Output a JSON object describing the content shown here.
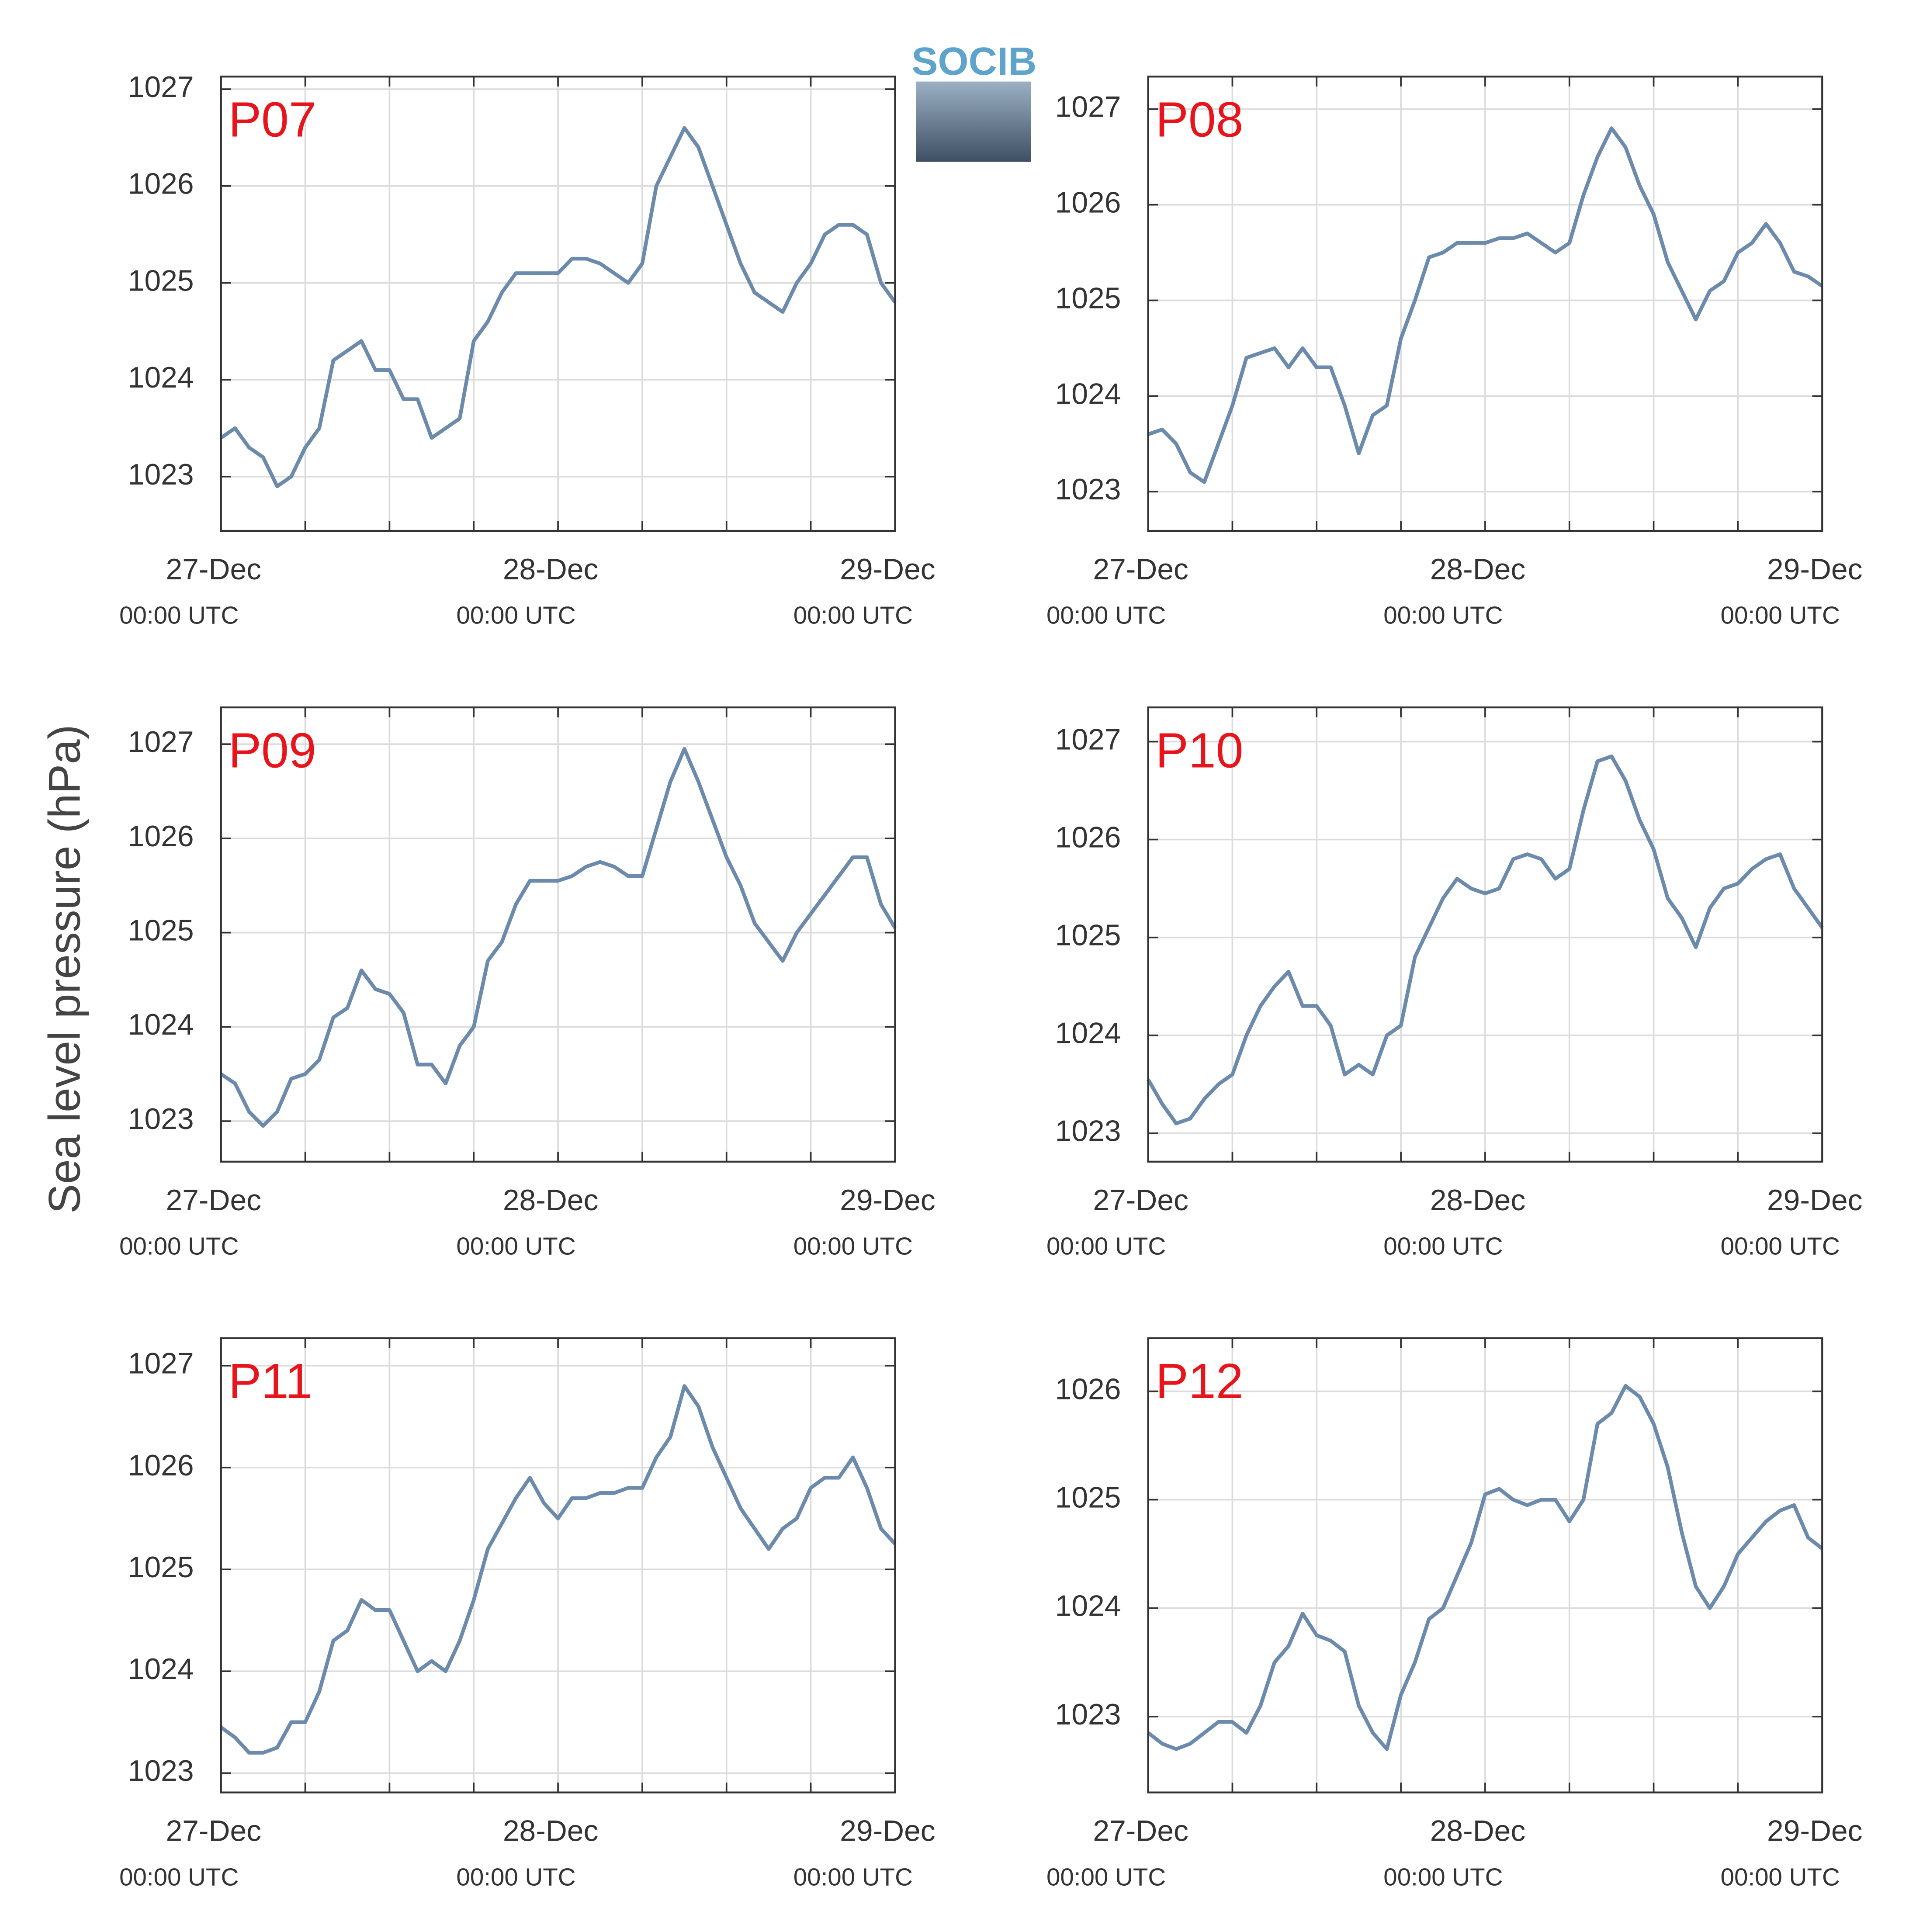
{
  "y_axis_label": "Sea level pressure (hPa)",
  "logo": "SOCIB",
  "chart_data": [
    {
      "type": "line",
      "title": "P07",
      "color": "#6c8aab",
      "title_color": "#e8141c",
      "grid": true,
      "xlim": [
        0,
        48
      ],
      "ylim": [
        1022.44,
        1027.13
      ],
      "yticks": [
        1023,
        1024,
        1025,
        1026,
        1027
      ],
      "xticks": [
        {
          "value": 0,
          "label": "27-Dec"
        },
        {
          "value": 24,
          "label": "28-Dec"
        },
        {
          "value": 48,
          "label": "29-Dec"
        }
      ],
      "xtick_sublabel": "00:00 UTC",
      "xminor_ticks": [
        6,
        12,
        18,
        30,
        36,
        42
      ],
      "x": [
        0,
        1,
        2,
        3,
        4,
        5,
        6,
        7,
        8,
        9,
        10,
        11,
        12,
        13,
        14,
        15,
        16,
        17,
        18,
        19,
        20,
        21,
        22,
        23,
        24,
        25,
        26,
        27,
        28,
        29,
        30,
        31,
        32,
        33,
        34,
        35,
        36,
        37,
        38,
        39,
        40,
        41,
        42,
        43,
        44,
        45,
        46,
        47,
        48
      ],
      "values": [
        1023.4,
        1023.5,
        1023.3,
        1023.2,
        1022.9,
        1023.0,
        1023.3,
        1023.5,
        1024.2,
        1024.3,
        1024.4,
        1024.1,
        1024.1,
        1023.8,
        1023.8,
        1023.4,
        1023.5,
        1023.6,
        1024.4,
        1024.6,
        1024.9,
        1025.1,
        1025.1,
        1025.1,
        1025.1,
        1025.25,
        1025.25,
        1025.2,
        1025.1,
        1025.0,
        1025.2,
        1026.0,
        1026.3,
        1026.6,
        1026.4,
        1026.0,
        1025.6,
        1025.2,
        1024.9,
        1024.8,
        1024.7,
        1025.0,
        1025.2,
        1025.5,
        1025.6,
        1025.6,
        1025.5,
        1025.0,
        1024.8
      ]
    },
    {
      "type": "line",
      "title": "P08",
      "color": "#6c8aab",
      "title_color": "#e8141c",
      "grid": true,
      "xlim": [
        0,
        48
      ],
      "ylim": [
        1022.59,
        1027.34
      ],
      "yticks": [
        1023,
        1024,
        1025,
        1026,
        1027
      ],
      "xticks": [
        {
          "value": 0,
          "label": "27-Dec"
        },
        {
          "value": 24,
          "label": "28-Dec"
        },
        {
          "value": 48,
          "label": "29-Dec"
        }
      ],
      "xtick_sublabel": "00:00 UTC",
      "xminor_ticks": [
        6,
        12,
        18,
        30,
        36,
        42
      ],
      "x": [
        0,
        1,
        2,
        3,
        4,
        5,
        6,
        7,
        8,
        9,
        10,
        11,
        12,
        13,
        14,
        15,
        16,
        17,
        18,
        19,
        20,
        21,
        22,
        23,
        24,
        25,
        26,
        27,
        28,
        29,
        30,
        31,
        32,
        33,
        34,
        35,
        36,
        37,
        38,
        39,
        40,
        41,
        42,
        43,
        44,
        45,
        46,
        47,
        48
      ],
      "values": [
        1023.6,
        1023.65,
        1023.5,
        1023.2,
        1023.1,
        1023.5,
        1023.9,
        1024.4,
        1024.45,
        1024.5,
        1024.3,
        1024.5,
        1024.3,
        1024.3,
        1023.9,
        1023.4,
        1023.8,
        1023.9,
        1024.6,
        1025.0,
        1025.45,
        1025.5,
        1025.6,
        1025.6,
        1025.6,
        1025.65,
        1025.65,
        1025.7,
        1025.6,
        1025.5,
        1025.6,
        1026.1,
        1026.5,
        1026.8,
        1026.6,
        1026.2,
        1025.9,
        1025.4,
        1025.1,
        1024.8,
        1025.1,
        1025.2,
        1025.5,
        1025.6,
        1025.8,
        1025.6,
        1025.3,
        1025.25,
        1025.15
      ]
    },
    {
      "type": "line",
      "title": "P09",
      "color": "#6c8aab",
      "title_color": "#e8141c",
      "grid": true,
      "xlim": [
        0,
        48
      ],
      "ylim": [
        1022.57,
        1027.39
      ],
      "yticks": [
        1023,
        1024,
        1025,
        1026,
        1027
      ],
      "xticks": [
        {
          "value": 0,
          "label": "27-Dec"
        },
        {
          "value": 24,
          "label": "28-Dec"
        },
        {
          "value": 48,
          "label": "29-Dec"
        }
      ],
      "xtick_sublabel": "00:00 UTC",
      "xminor_ticks": [
        6,
        12,
        18,
        30,
        36,
        42
      ],
      "x": [
        0,
        1,
        2,
        3,
        4,
        5,
        6,
        7,
        8,
        9,
        10,
        11,
        12,
        13,
        14,
        15,
        16,
        17,
        18,
        19,
        20,
        21,
        22,
        23,
        24,
        25,
        26,
        27,
        28,
        29,
        30,
        31,
        32,
        33,
        34,
        35,
        36,
        37,
        38,
        39,
        40,
        41,
        42,
        43,
        44,
        45,
        46,
        47,
        48
      ],
      "values": [
        1023.5,
        1023.4,
        1023.1,
        1022.95,
        1023.1,
        1023.45,
        1023.5,
        1023.65,
        1024.1,
        1024.2,
        1024.6,
        1024.4,
        1024.35,
        1024.15,
        1023.6,
        1023.6,
        1023.4,
        1023.8,
        1024.0,
        1024.7,
        1024.9,
        1025.3,
        1025.55,
        1025.55,
        1025.55,
        1025.6,
        1025.7,
        1025.75,
        1025.7,
        1025.6,
        1025.6,
        1026.1,
        1026.6,
        1026.95,
        1026.6,
        1026.2,
        1025.8,
        1025.5,
        1025.1,
        1024.9,
        1024.7,
        1025.0,
        1025.2,
        1025.4,
        1025.6,
        1025.8,
        1025.8,
        1025.3,
        1025.05
      ]
    },
    {
      "type": "line",
      "title": "P10",
      "color": "#6c8aab",
      "title_color": "#e8141c",
      "grid": true,
      "xlim": [
        0,
        48
      ],
      "ylim": [
        1022.71,
        1027.35
      ],
      "yticks": [
        1023,
        1024,
        1025,
        1026,
        1027
      ],
      "xticks": [
        {
          "value": 0,
          "label": "27-Dec"
        },
        {
          "value": 24,
          "label": "28-Dec"
        },
        {
          "value": 48,
          "label": "29-Dec"
        }
      ],
      "xtick_sublabel": "00:00 UTC",
      "xminor_ticks": [
        6,
        12,
        18,
        30,
        36,
        42
      ],
      "x": [
        0,
        1,
        2,
        3,
        4,
        5,
        6,
        7,
        8,
        9,
        10,
        11,
        12,
        13,
        14,
        15,
        16,
        17,
        18,
        19,
        20,
        21,
        22,
        23,
        24,
        25,
        26,
        27,
        28,
        29,
        30,
        31,
        32,
        33,
        34,
        35,
        36,
        37,
        38,
        39,
        40,
        41,
        42,
        43,
        44,
        45,
        46,
        47,
        48
      ],
      "values": [
        1023.55,
        1023.3,
        1023.1,
        1023.15,
        1023.35,
        1023.5,
        1023.6,
        1024.0,
        1024.3,
        1024.5,
        1024.65,
        1024.3,
        1024.3,
        1024.1,
        1023.6,
        1023.7,
        1023.6,
        1024.0,
        1024.1,
        1024.8,
        1025.1,
        1025.4,
        1025.6,
        1025.5,
        1025.45,
        1025.5,
        1025.8,
        1025.85,
        1025.8,
        1025.6,
        1025.7,
        1026.3,
        1026.8,
        1026.85,
        1026.6,
        1026.2,
        1025.9,
        1025.4,
        1025.2,
        1024.9,
        1025.3,
        1025.5,
        1025.55,
        1025.7,
        1025.8,
        1025.85,
        1025.5,
        1025.3,
        1025.1
      ]
    },
    {
      "type": "line",
      "title": "P11",
      "color": "#6c8aab",
      "title_color": "#e8141c",
      "grid": true,
      "xlim": [
        0,
        48
      ],
      "ylim": [
        1022.81,
        1027.27
      ],
      "yticks": [
        1023,
        1024,
        1025,
        1026,
        1027
      ],
      "xticks": [
        {
          "value": 0,
          "label": "27-Dec"
        },
        {
          "value": 24,
          "label": "28-Dec"
        },
        {
          "value": 48,
          "label": "29-Dec"
        }
      ],
      "xtick_sublabel": "00:00 UTC",
      "xminor_ticks": [
        6,
        12,
        18,
        30,
        36,
        42
      ],
      "x": [
        0,
        1,
        2,
        3,
        4,
        5,
        6,
        7,
        8,
        9,
        10,
        11,
        12,
        13,
        14,
        15,
        16,
        17,
        18,
        19,
        20,
        21,
        22,
        23,
        24,
        25,
        26,
        27,
        28,
        29,
        30,
        31,
        32,
        33,
        34,
        35,
        36,
        37,
        38,
        39,
        40,
        41,
        42,
        43,
        44,
        45,
        46,
        47,
        48
      ],
      "values": [
        1023.45,
        1023.35,
        1023.2,
        1023.2,
        1023.25,
        1023.5,
        1023.5,
        1023.8,
        1024.3,
        1024.4,
        1024.7,
        1024.6,
        1024.6,
        1024.3,
        1024.0,
        1024.1,
        1024.0,
        1024.3,
        1024.7,
        1025.2,
        1025.45,
        1025.7,
        1025.9,
        1025.65,
        1025.5,
        1025.7,
        1025.7,
        1025.75,
        1025.75,
        1025.8,
        1025.8,
        1026.1,
        1026.3,
        1026.8,
        1026.6,
        1026.2,
        1025.9,
        1025.6,
        1025.4,
        1025.2,
        1025.4,
        1025.5,
        1025.8,
        1025.9,
        1025.9,
        1026.1,
        1025.8,
        1025.4,
        1025.25
      ]
    },
    {
      "type": "line",
      "title": "P12",
      "color": "#6c8aab",
      "title_color": "#e8141c",
      "grid": true,
      "xlim": [
        0,
        48
      ],
      "ylim": [
        1022.3,
        1026.49
      ],
      "yticks": [
        1023,
        1024,
        1025,
        1026
      ],
      "xticks": [
        {
          "value": 0,
          "label": "27-Dec"
        },
        {
          "value": 24,
          "label": "28-Dec"
        },
        {
          "value": 48,
          "label": "29-Dec"
        }
      ],
      "xtick_sublabel": "00:00 UTC",
      "xminor_ticks": [
        6,
        12,
        18,
        30,
        36,
        42
      ],
      "x": [
        0,
        1,
        2,
        3,
        4,
        5,
        6,
        7,
        8,
        9,
        10,
        11,
        12,
        13,
        14,
        15,
        16,
        17,
        18,
        19,
        20,
        21,
        22,
        23,
        24,
        25,
        26,
        27,
        28,
        29,
        30,
        31,
        32,
        33,
        34,
        35,
        36,
        37,
        38,
        39,
        40,
        41,
        42,
        43,
        44,
        45,
        46,
        47,
        48
      ],
      "values": [
        1022.85,
        1022.75,
        1022.7,
        1022.75,
        1022.85,
        1022.95,
        1022.95,
        1022.85,
        1023.1,
        1023.5,
        1023.65,
        1023.95,
        1023.75,
        1023.7,
        1023.6,
        1023.1,
        1022.85,
        1022.7,
        1023.2,
        1023.5,
        1023.9,
        1024.0,
        1024.3,
        1024.6,
        1025.05,
        1025.1,
        1025.0,
        1024.95,
        1025.0,
        1025.0,
        1024.8,
        1025.0,
        1025.7,
        1025.8,
        1026.05,
        1025.95,
        1025.7,
        1025.3,
        1024.7,
        1024.2,
        1024.0,
        1024.2,
        1024.5,
        1024.65,
        1024.8,
        1024.9,
        1024.95,
        1024.65,
        1024.55
      ]
    }
  ]
}
